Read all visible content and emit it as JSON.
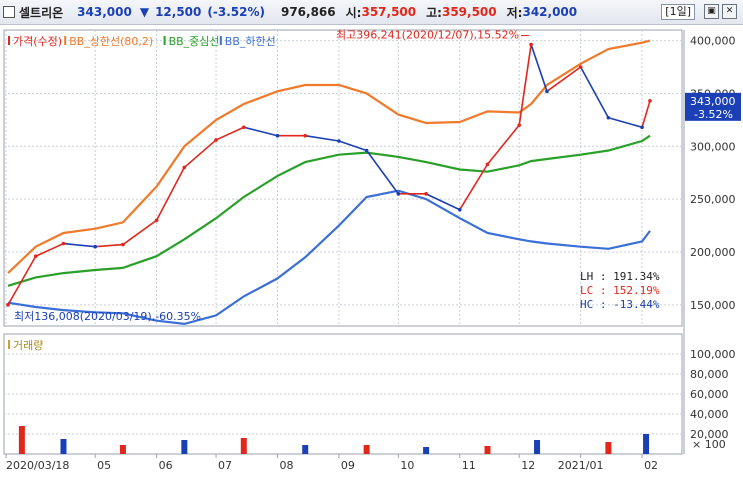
{
  "header": {
    "name": "셀트리온",
    "price": "343,000",
    "change_arrow": "▼",
    "change": "12,500",
    "change_pct": "(-3.52%)",
    "volume": "976,866",
    "open_label": "시:",
    "open": "357,500",
    "high_label": "고:",
    "high": "359,500",
    "low_label": "저:",
    "low": "342,000",
    "period": "[1일]"
  },
  "legend": {
    "price": "가격(수정)",
    "bb_upper": "BB_상한선(80,2)",
    "bb_mid": "BB_중심선",
    "bb_lower": "BB_하한선",
    "volume": "거래량"
  },
  "annotations": {
    "high": "최고396,241(2020/12/07),15.52%",
    "low": "최저136,008(2020/03/19),-60.35%"
  },
  "stats": {
    "lh": "LH : 191.34%",
    "lc": "LC : 152.19%",
    "hc": "HC : -13.44%"
  },
  "current_label": {
    "price": "343,000",
    "pct": "-3.52%"
  },
  "colors": {
    "up": "#e1261c",
    "down": "#1b3fb5",
    "bb_upper": "#f07a2a",
    "bb_mid": "#2aa02a",
    "bb_lower": "#3b6fd8",
    "grid": "#c9ced8"
  },
  "chart_data": [
    {
      "type": "line",
      "title": "셀트리온 가격(수정)",
      "x": [
        "2020-03-18",
        "2020-04-01",
        "2020-04-15",
        "2020-05-01",
        "2020-05-15",
        "2020-06-01",
        "2020-06-15",
        "2020-07-01",
        "2020-07-15",
        "2020-08-01",
        "2020-08-15",
        "2020-09-01",
        "2020-09-15",
        "2020-10-01",
        "2020-10-15",
        "2020-11-01",
        "2020-11-15",
        "2020-12-01",
        "2020-12-07",
        "2020-12-15",
        "2021-01-01",
        "2021-01-15",
        "2021-02-01",
        "2021-02-05"
      ],
      "series": [
        {
          "name": "가격(수정)",
          "values": [
            150000,
            196000,
            208000,
            205000,
            207000,
            230000,
            280000,
            306000,
            318000,
            310000,
            310000,
            305000,
            296000,
            255000,
            255000,
            240000,
            283000,
            320000,
            396241,
            352000,
            375000,
            327000,
            318000,
            343000
          ]
        },
        {
          "name": "BB_상한선(80,2)",
          "values": [
            180000,
            205000,
            218000,
            222000,
            228000,
            262000,
            300000,
            325000,
            340000,
            352000,
            358000,
            358000,
            350000,
            330000,
            322000,
            323000,
            333000,
            332000,
            340000,
            358000,
            378000,
            392000,
            398000,
            400000
          ]
        },
        {
          "name": "BB_중심선",
          "values": [
            168000,
            176000,
            180000,
            183000,
            185000,
            196000,
            212000,
            232000,
            252000,
            272000,
            285000,
            292000,
            294000,
            290000,
            285000,
            278000,
            276000,
            282000,
            286000,
            288000,
            292000,
            296000,
            305000,
            310000
          ]
        },
        {
          "name": "BB_하한선",
          "values": [
            152000,
            148000,
            145000,
            143000,
            142000,
            135000,
            132000,
            140000,
            158000,
            175000,
            195000,
            225000,
            252000,
            258000,
            250000,
            232000,
            218000,
            212000,
            210000,
            208000,
            205000,
            203000,
            210000,
            220000
          ]
        }
      ],
      "y_ticks": [
        150000,
        200000,
        250000,
        300000,
        350000,
        400000
      ],
      "ylim": [
        130000,
        410000
      ],
      "x_tick_labels": [
        "2020/03/18",
        "05",
        "06",
        "07",
        "08",
        "09",
        "10",
        "11",
        "12",
        "2021/01",
        "02"
      ]
    },
    {
      "type": "bar",
      "title": "거래량",
      "categories": [
        "2020-03",
        "2020-04",
        "2020-05",
        "2020-06",
        "2020-07",
        "2020-08",
        "2020-09",
        "2020-10",
        "2020-11",
        "2020-12",
        "2021-01",
        "2021-02"
      ],
      "values": [
        28000,
        15000,
        9000,
        14000,
        16000,
        9000,
        9000,
        7000,
        8000,
        14000,
        12000,
        20000
      ],
      "y_ticks": [
        20000,
        40000,
        60000,
        80000,
        100000
      ],
      "ylim": [
        0,
        120000
      ],
      "unit": "× 100"
    }
  ]
}
